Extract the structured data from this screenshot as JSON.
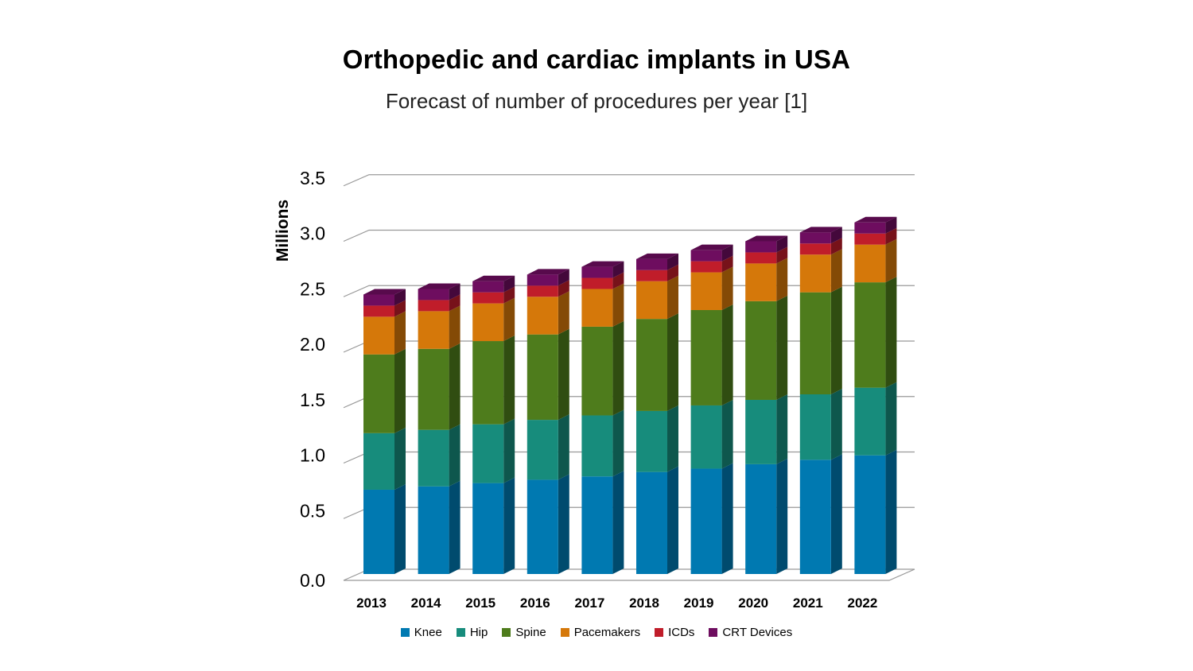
{
  "chart_data": {
    "type": "bar",
    "stacked": true,
    "title": "Orthopedic and cardiac implants in USA",
    "subtitle": "Forecast of number of procedures per year [1]",
    "ylabel": "Millions",
    "xlabel": "",
    "ylim": [
      0,
      3.5
    ],
    "yticks": [
      "0.0",
      "0.5",
      "1.0",
      "1.5",
      "2.0",
      "2.5",
      "3.0",
      "3.5"
    ],
    "categories": [
      "2013",
      "2014",
      "2015",
      "2016",
      "2017",
      "2018",
      "2019",
      "2020",
      "2021",
      "2022"
    ],
    "series": [
      {
        "name": "Knee",
        "color": "#0079B1",
        "values": [
          0.76,
          0.79,
          0.82,
          0.85,
          0.88,
          0.92,
          0.95,
          0.99,
          1.03,
          1.07
        ]
      },
      {
        "name": "Hip",
        "color": "#178C7C",
        "values": [
          0.51,
          0.51,
          0.53,
          0.54,
          0.55,
          0.55,
          0.57,
          0.58,
          0.59,
          0.61
        ]
      },
      {
        "name": "Spine",
        "color": "#4E7C1C",
        "values": [
          0.71,
          0.73,
          0.75,
          0.77,
          0.8,
          0.83,
          0.86,
          0.89,
          0.92,
          0.95
        ]
      },
      {
        "name": "Pacemakers",
        "color": "#D5780A",
        "values": [
          0.34,
          0.34,
          0.34,
          0.34,
          0.34,
          0.34,
          0.34,
          0.34,
          0.34,
          0.34
        ]
      },
      {
        "name": "ICDs",
        "color": "#C01D2A",
        "values": [
          0.1,
          0.1,
          0.1,
          0.1,
          0.1,
          0.1,
          0.1,
          0.1,
          0.1,
          0.1
        ]
      },
      {
        "name": "CRT Devices",
        "color": "#6E0D5F",
        "values": [
          0.1,
          0.1,
          0.1,
          0.1,
          0.1,
          0.1,
          0.1,
          0.1,
          0.1,
          0.1
        ]
      }
    ],
    "legend_position": "bottom"
  }
}
